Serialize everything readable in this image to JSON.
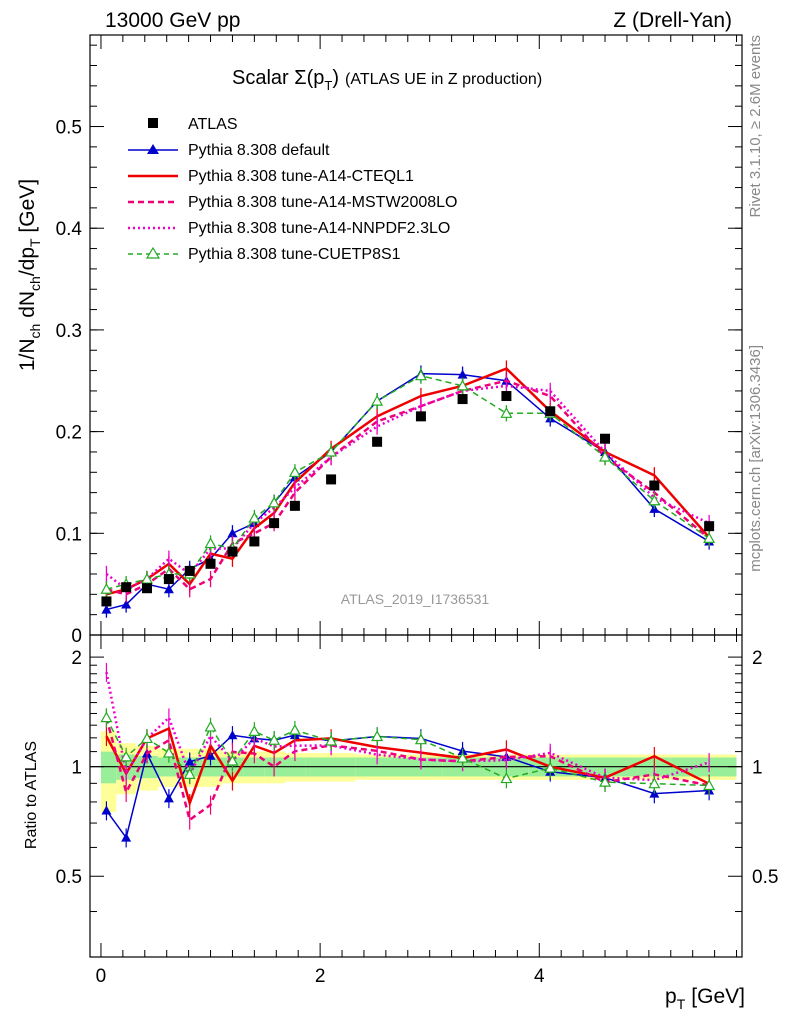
{
  "header": {
    "left": "13000 GeV pp",
    "right": "Z (Drell-Yan)",
    "side_rivet": "Rivet 3.1.10, ≥ 2.6M events",
    "side_mcplots": "mcplots.cern.ch [arXiv:1306.3436]",
    "analysis_id": "ATLAS_2019_I1736531"
  },
  "chart_data": {
    "type": "line",
    "title": "Scalar Σ(p_T) (ATLAS UE in Z production)",
    "title_main": "Scalar Σ(p",
    "title_sub": "T",
    "title_close": ")",
    "title_tail": "(ATLAS UE in Z production)",
    "xlabel_main": "p",
    "xlabel_sub": "T",
    "xlabel_tail": "[GeV]",
    "ylabel": "1/N_ch dN_ch/dp_T [GeV]",
    "ratio_ylabel": "Ratio to ATLAS",
    "xlim": [
      -0.1,
      5.85
    ],
    "ylim": [
      0,
      0.59
    ],
    "ratio_ylim": [
      0.3,
      2.3
    ],
    "x_ticks": [
      "0",
      "2",
      "4"
    ],
    "y_ticks": [
      "0",
      "0.1",
      "0.2",
      "0.3",
      "0.4",
      "0.5"
    ],
    "ratio_ticks": [
      "0.5",
      "1",
      "2"
    ],
    "x": [
      0.05,
      0.23,
      0.42,
      0.62,
      0.81,
      1.0,
      1.2,
      1.4,
      1.58,
      1.77,
      2.1,
      2.52,
      2.92,
      3.3,
      3.7,
      4.1,
      4.6,
      5.05,
      5.55
    ],
    "data": {
      "name": "ATLAS",
      "values": [
        0.033,
        0.047,
        0.046,
        0.055,
        0.063,
        0.07,
        0.082,
        0.092,
        0.11,
        0.127,
        0.153,
        0.19,
        0.215,
        0.232,
        0.235,
        0.22,
        0.193,
        0.147,
        0.107
      ]
    },
    "series": [
      {
        "name": "Pythia 8.308 default",
        "color": "#0000cc",
        "style": "solid",
        "marker": "triangle",
        "values": [
          0.025,
          0.03,
          0.05,
          0.045,
          0.065,
          0.075,
          0.1,
          0.11,
          0.13,
          0.155,
          0.18,
          0.23,
          0.257,
          0.256,
          0.25,
          0.213,
          0.18,
          0.124,
          0.092
        ]
      },
      {
        "name": "Pythia 8.308 tune-A14-CTEQL1",
        "color": "#ee0000",
        "style": "solid",
        "marker": "none",
        "values": [
          0.04,
          0.045,
          0.055,
          0.07,
          0.05,
          0.08,
          0.075,
          0.105,
          0.12,
          0.15,
          0.183,
          0.215,
          0.235,
          0.245,
          0.262,
          0.22,
          0.18,
          0.157,
          0.096
        ]
      },
      {
        "name": "Pythia 8.308 tune-A14-MSTW2008LO",
        "color": "#ee0077",
        "style": "dashed",
        "marker": "none",
        "values": [
          0.045,
          0.04,
          0.05,
          0.065,
          0.045,
          0.055,
          0.09,
          0.1,
          0.11,
          0.14,
          0.175,
          0.21,
          0.225,
          0.24,
          0.25,
          0.235,
          0.175,
          0.14,
          0.095
        ]
      },
      {
        "name": "Pythia 8.308 tune-A14-NNPDF2.3LO",
        "color": "#ee00cc",
        "style": "dotted",
        "marker": "none",
        "values": [
          0.06,
          0.045,
          0.055,
          0.075,
          0.06,
          0.085,
          0.085,
          0.11,
          0.125,
          0.145,
          0.175,
          0.205,
          0.225,
          0.24,
          0.245,
          0.24,
          0.18,
          0.135,
          0.11
        ]
      },
      {
        "name": "Pythia 8.308 tune-CUETP8S1",
        "color": "#22aa22",
        "style": "dashed",
        "marker": "open-triangle",
        "values": [
          0.045,
          0.05,
          0.055,
          0.06,
          0.06,
          0.09,
          0.085,
          0.115,
          0.13,
          0.16,
          0.18,
          0.23,
          0.255,
          0.245,
          0.218,
          0.218,
          0.175,
          0.132,
          0.095
        ]
      }
    ],
    "ratio_band": {
      "x_edges": [
        0.0,
        0.14,
        0.32,
        0.52,
        0.71,
        0.9,
        1.1,
        1.3,
        1.49,
        1.68,
        1.87,
        2.32,
        2.72,
        3.12,
        3.5,
        3.9,
        4.3,
        4.9,
        5.2,
        5.8
      ],
      "stat": [
        0.1,
        0.08,
        0.07,
        0.06,
        0.06,
        0.06,
        0.06,
        0.06,
        0.06,
        0.06,
        0.06,
        0.06,
        0.06,
        0.06,
        0.06,
        0.06,
        0.06,
        0.06,
        0.06
      ],
      "total": [
        0.25,
        0.16,
        0.14,
        0.12,
        0.12,
        0.12,
        0.1,
        0.1,
        0.1,
        0.09,
        0.09,
        0.08,
        0.08,
        0.08,
        0.08,
        0.08,
        0.08,
        0.08,
        0.08
      ]
    },
    "legend_position": "top-left"
  }
}
